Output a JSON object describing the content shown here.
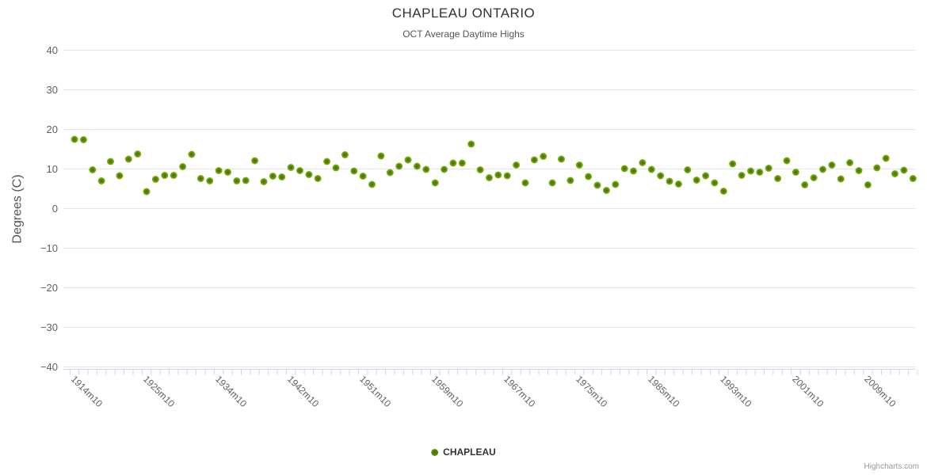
{
  "credit": "Highcharts.com",
  "chart_data": {
    "type": "scatter",
    "title": "CHAPLEAU ONTARIO",
    "subtitle": "OCT Average Daytime Highs",
    "xlabel": "",
    "ylabel": "Degrees (C)",
    "ylim": [
      -40,
      40
    ],
    "ytick_step": 10,
    "grid": true,
    "legend_position": "bottom-center",
    "x_tick_labels": [
      {
        "index": 0,
        "label": "1914m10"
      },
      {
        "index": 8,
        "label": "1925m10"
      },
      {
        "index": 16,
        "label": "1934m10"
      },
      {
        "index": 24,
        "label": "1942m10"
      },
      {
        "index": 32,
        "label": "1951m10"
      },
      {
        "index": 40,
        "label": "1959m10"
      },
      {
        "index": 48,
        "label": "1967m10"
      },
      {
        "index": 56,
        "label": "1975m10"
      },
      {
        "index": 64,
        "label": "1985m10"
      },
      {
        "index": 72,
        "label": "1993m10"
      },
      {
        "index": 80,
        "label": "2001m10"
      },
      {
        "index": 88,
        "label": "2009m10"
      }
    ],
    "series": [
      {
        "name": "CHAPLEAU",
        "values": [
          17.5,
          17.4,
          9.8,
          7.0,
          11.9,
          8.3,
          12.5,
          13.8,
          4.3,
          7.4,
          8.4,
          8.4,
          10.6,
          13.7,
          7.6,
          7.0,
          9.6,
          9.2,
          7.0,
          7.1,
          12.1,
          6.8,
          8.2,
          8.0,
          10.4,
          9.6,
          8.6,
          7.6,
          11.9,
          10.3,
          13.6,
          9.5,
          8.2,
          6.1,
          13.3,
          9.1,
          10.7,
          12.3,
          10.7,
          9.9,
          6.5,
          9.9,
          11.5,
          11.5,
          16.3,
          9.8,
          7.8,
          8.5,
          8.3,
          11.0,
          6.5,
          12.3,
          13.2,
          6.5,
          12.5,
          7.1,
          11.0,
          8.1,
          5.9,
          4.6,
          6.1,
          10.1,
          9.5,
          11.6,
          9.9,
          8.3,
          6.9,
          6.2,
          9.8,
          7.2,
          8.3,
          6.5,
          4.4,
          11.3,
          8.4,
          9.5,
          9.2,
          10.2,
          7.6,
          12.1,
          9.2,
          6.0,
          7.8,
          9.9,
          11.0,
          7.5,
          11.6,
          9.6,
          6.0,
          10.3,
          12.7,
          8.8,
          9.7,
          7.6
        ]
      }
    ],
    "colors": {
      "marker_outer": "#8abb15",
      "marker_mid": "#55850a",
      "marker_inner": "#3e6d04",
      "grid": "#e6e6e6",
      "axis": "#ccd6eb",
      "title": "#333333",
      "subtitle": "#555555",
      "axis_labels": "#606060",
      "legend_text": "#333333",
      "credit": "#999999"
    }
  }
}
